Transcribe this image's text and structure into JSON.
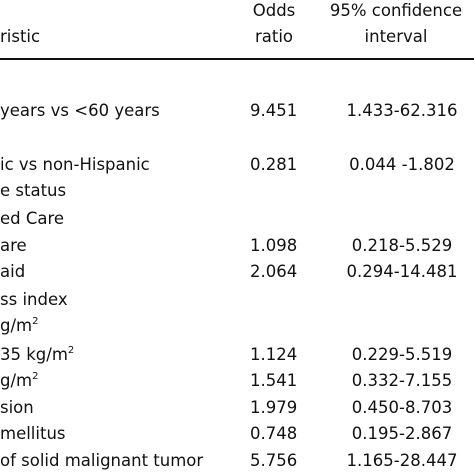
{
  "table": {
    "headers": {
      "characteristic": "ristic",
      "odds_ratio_line1": "Odds",
      "odds_ratio_line2": "ratio",
      "ci_line1": "95% confidence",
      "ci_line2": "interval"
    },
    "rows": [
      {
        "label": "years vs <60 years",
        "or": "9.451",
        "ci": "1.433-62.316"
      },
      {
        "label": "ic vs non-Hispanic",
        "or": "0.281",
        "ci": "0.044 -1.802"
      },
      {
        "label": "e status",
        "or": "",
        "ci": ""
      },
      {
        "label": "ed Care",
        "or": "",
        "ci": ""
      },
      {
        "label": "are",
        "or": "1.098",
        "ci": "0.218-5.529"
      },
      {
        "label": "aid",
        "or": "2.064",
        "ci": "0.294-14.481"
      },
      {
        "label": "ss index",
        "or": "",
        "ci": ""
      },
      {
        "label": "g/m",
        "sup": "2",
        "or": "",
        "ci": ""
      },
      {
        "label": "35 kg/m",
        "sup": "2",
        "or": "1.124",
        "ci": "0.229-5.519"
      },
      {
        "label": "g/m",
        "sup": "2",
        "or": "1.541",
        "ci": "0.332-7.155"
      },
      {
        "label": "sion",
        "or": "1.979",
        "ci": "0.450-8.703"
      },
      {
        "label": " mellitus",
        "or": "0.748",
        "ci": "0.195-2.867"
      },
      {
        "label": "of solid malignant tumor",
        "or": "5.756",
        "ci": "1.165-28.447"
      }
    ]
  }
}
